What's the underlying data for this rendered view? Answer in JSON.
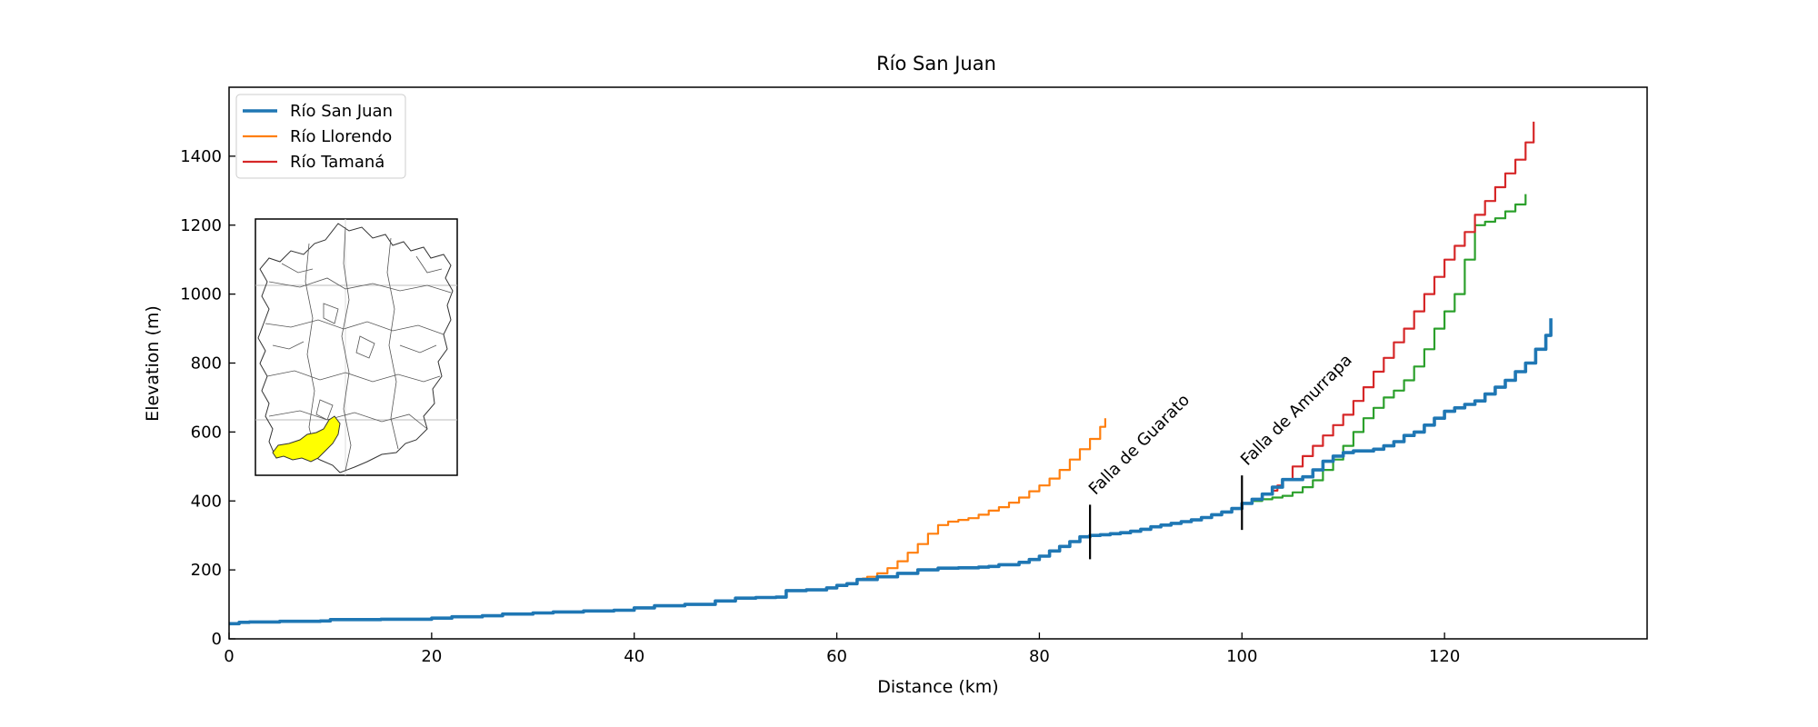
{
  "chart_data": {
    "type": "line",
    "title": "Río San Juan",
    "xlabel": "Distance (km)",
    "ylabel": "Elevation (m)",
    "xlim": [
      0,
      140
    ],
    "ylim": [
      0,
      1600
    ],
    "xticks": [
      0,
      20,
      40,
      60,
      80,
      100,
      120
    ],
    "yticks": [
      0,
      200,
      400,
      600,
      800,
      1000,
      1200,
      1400
    ],
    "grid": false,
    "legend_position": "top-left",
    "series": [
      {
        "name": "Río San Juan",
        "color": "#1f77b4",
        "x": [
          0,
          1,
          2,
          5,
          9,
          10,
          15,
          20,
          22,
          25,
          27,
          30,
          32,
          35,
          38,
          40,
          42,
          45,
          48,
          50,
          52,
          54,
          55,
          57,
          59,
          60,
          61,
          62,
          64,
          66,
          68,
          70,
          72,
          74,
          75,
          76,
          78,
          79,
          80,
          81,
          82,
          83,
          84,
          85,
          86,
          87,
          88,
          89,
          90,
          91,
          92,
          93,
          94,
          95,
          96,
          97,
          98,
          99,
          100,
          101,
          102,
          103,
          104,
          105,
          106,
          107,
          108,
          109,
          110,
          111,
          112,
          113,
          114,
          115,
          116,
          117,
          118,
          119,
          120,
          121,
          122,
          123,
          124,
          125,
          126,
          127,
          128,
          129,
          130,
          130.5
        ],
        "y": [
          44,
          48,
          49,
          51,
          52,
          56,
          57,
          60,
          64,
          67,
          72,
          75,
          78,
          81,
          83,
          90,
          96,
          100,
          110,
          118,
          120,
          121,
          140,
          142,
          148,
          155,
          160,
          172,
          180,
          190,
          200,
          205,
          206,
          208,
          210,
          215,
          222,
          230,
          240,
          255,
          268,
          282,
          296,
          300,
          302,
          305,
          308,
          312,
          318,
          325,
          330,
          335,
          340,
          345,
          352,
          360,
          368,
          378,
          393,
          405,
          420,
          440,
          462,
          462,
          470,
          490,
          515,
          530,
          540,
          545,
          545,
          550,
          560,
          572,
          590,
          600,
          620,
          640,
          660,
          670,
          680,
          690,
          710,
          730,
          750,
          775,
          800,
          840,
          880,
          930
        ]
      },
      {
        "name": "Río Llorendo",
        "color": "#ff7f0e",
        "x": [
          62.5,
          63,
          64,
          65,
          66,
          67,
          68,
          69,
          70,
          71,
          72,
          73,
          74,
          75,
          76,
          77,
          78,
          79,
          80,
          81,
          82,
          83,
          84,
          85,
          86,
          86.5
        ],
        "y": [
          175,
          180,
          190,
          205,
          225,
          250,
          275,
          305,
          330,
          340,
          345,
          350,
          360,
          372,
          382,
          395,
          410,
          428,
          445,
          465,
          490,
          520,
          550,
          580,
          615,
          640
        ]
      },
      {
        "name": "Río Tamaná",
        "color": "#d62728",
        "x": [
          103,
          103.5,
          104,
          105,
          106,
          107,
          108,
          109,
          110,
          111,
          112,
          113,
          114,
          115,
          116,
          117,
          118,
          119,
          120,
          121,
          122,
          123,
          124,
          125,
          126,
          127,
          128,
          128.8
        ],
        "y": [
          430,
          445,
          462,
          500,
          530,
          560,
          590,
          620,
          650,
          690,
          730,
          775,
          815,
          860,
          900,
          950,
          1000,
          1050,
          1100,
          1140,
          1180,
          1230,
          1270,
          1310,
          1350,
          1390,
          1440,
          1500
        ]
      },
      {
        "color": "#2ca02c",
        "x": [
          100,
          101,
          102,
          103,
          104,
          105,
          106,
          107,
          108,
          109,
          110,
          111,
          112,
          113,
          114,
          115,
          116,
          117,
          118,
          119,
          120,
          121,
          122,
          123,
          124,
          125,
          126,
          127,
          128
        ],
        "y": [
          393,
          400,
          405,
          410,
          415,
          425,
          440,
          460,
          490,
          520,
          560,
          600,
          640,
          670,
          700,
          720,
          750,
          790,
          840,
          900,
          950,
          1000,
          1100,
          1200,
          1210,
          1220,
          1240,
          1260,
          1290
        ]
      }
    ],
    "annotations": [
      {
        "text": "Falla de Guarato",
        "x": 85,
        "y": 310
      },
      {
        "text": "Falla de Amurrapa",
        "x": 100,
        "y": 395
      }
    ]
  },
  "inset": {
    "highlight_color": "#ffff00"
  }
}
